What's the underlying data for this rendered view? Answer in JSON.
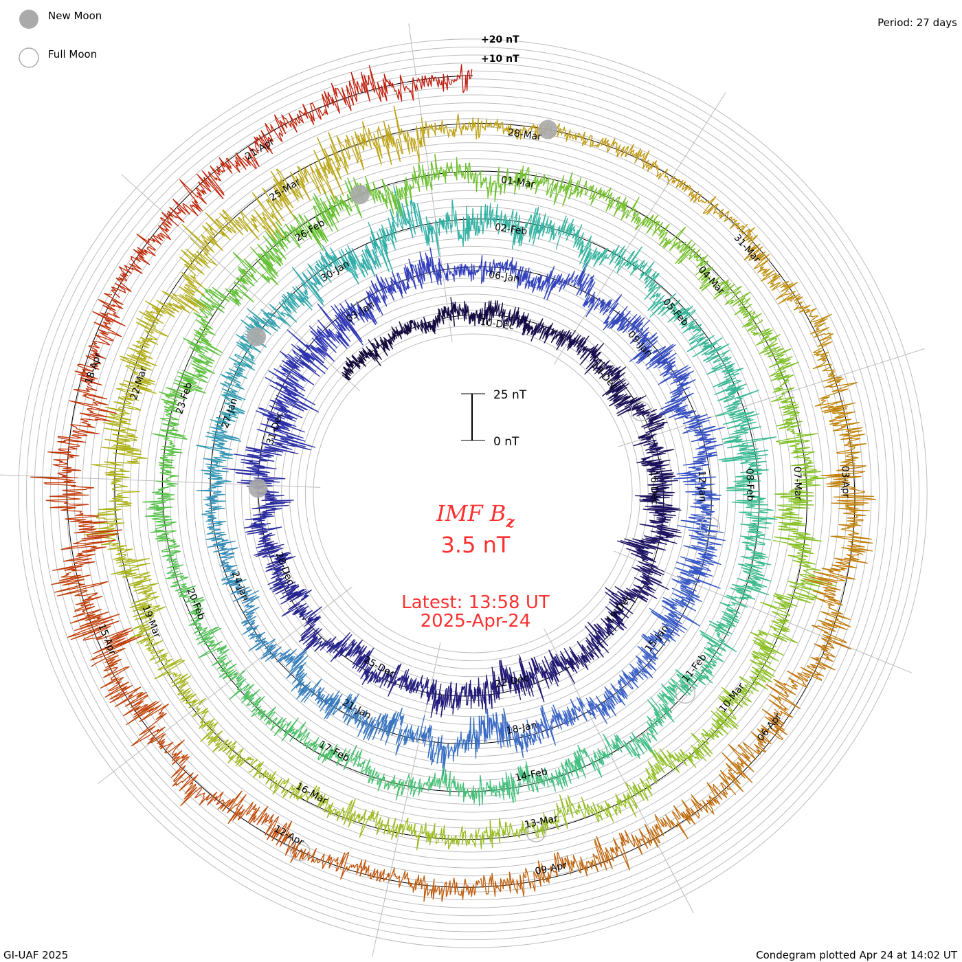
{
  "legend": {
    "new_moon": "New Moon",
    "full_moon": "Full Moon"
  },
  "period": "Period: 27 days",
  "footer_left": "GI-UAF 2025",
  "footer_right": "Condegram plotted Apr 24 at 14:02 UT",
  "ring_labels": [
    "+20 nT",
    "+10 nT"
  ],
  "scale": {
    "top": "25 nT",
    "bottom": "0 nT"
  },
  "center": {
    "title": "IMF B",
    "subscript": "z",
    "value": "3.5 nT",
    "latest": "Latest: 13:58 UT",
    "date": "2025-Apr-24"
  },
  "chart_data": {
    "type": "line",
    "layout": "condegram spiral",
    "title": "IMF Bz",
    "units": "nT",
    "period_days": 27,
    "start": "2024-12-07T00:00:00Z",
    "end": "2025-04-24T13:58:00Z",
    "latest_value_nT": 3.5,
    "positive_direction": "outward",
    "date_labels": [
      "10-Dec",
      "13-Dec",
      "16-Dec",
      "19-Dec",
      "22-Dec",
      "25-Dec",
      "28-Dec",
      "31-Dec",
      "03-Jan",
      "06-Jan",
      "09-Jan",
      "12-Jan",
      "15-Jan",
      "18-Jan",
      "21-Jan",
      "24-Jan",
      "27-Jan",
      "30-Jan",
      "02-Feb",
      "05-Feb",
      "08-Feb",
      "11-Feb",
      "14-Feb",
      "17-Feb",
      "20-Feb",
      "23-Feb",
      "26-Feb",
      "01-Mar",
      "04-Mar",
      "07-Mar",
      "10-Mar",
      "13-Mar",
      "16-Mar",
      "19-Mar",
      "22-Mar",
      "25-Mar",
      "28-Mar",
      "31-Mar",
      "03-Apr",
      "06-Apr",
      "09-Apr",
      "12-Apr",
      "15-Apr",
      "18-Apr",
      "21-Apr"
    ],
    "first_label_date": "2024-12-10T00:00:00Z",
    "label_interval_days": 3,
    "new_moons": [
      "2024-12-30T22:27:00Z",
      "2025-01-29T12:36:00Z",
      "2025-02-28T00:45:00Z",
      "2025-03-29T10:58:00Z"
    ],
    "full_moons": [
      "2024-12-15T09:02:00Z",
      "2025-01-13T22:27:00Z",
      "2025-02-12T13:53:00Z",
      "2025-03-14T06:55:00Z",
      "2025-04-13T00:22:00Z"
    ],
    "daily_variability_nT": [
      3,
      3,
      3,
      4,
      4,
      4,
      4,
      5,
      5,
      5,
      6,
      7,
      6,
      5,
      5,
      6,
      7,
      6,
      5,
      5,
      5,
      5,
      5,
      6,
      9,
      9,
      8,
      7,
      6,
      6,
      4,
      4,
      5,
      5,
      6,
      6,
      6,
      6,
      7,
      6,
      5,
      5,
      6,
      7,
      6,
      6,
      5,
      5,
      4,
      4,
      4,
      5,
      5,
      6,
      7,
      7,
      8,
      6,
      6,
      5,
      5,
      5,
      6,
      7,
      7,
      6,
      6,
      5,
      5,
      5,
      5,
      4,
      4,
      4,
      4,
      4,
      4,
      5,
      5,
      6,
      6,
      7,
      7,
      6,
      5,
      5,
      4,
      4,
      5,
      5,
      6,
      7,
      7,
      6,
      5,
      5,
      5,
      4,
      4,
      4,
      4,
      4,
      5,
      6,
      6,
      7,
      6,
      7,
      8,
      9,
      8,
      3,
      3,
      3,
      3,
      4,
      4,
      6,
      7,
      7,
      6,
      6,
      5,
      5,
      5,
      4,
      4,
      5,
      5,
      7,
      9,
      9,
      7,
      5,
      4,
      5,
      5,
      6,
      4
    ],
    "colormap": [
      [
        0,
        "#120838"
      ],
      [
        0.12,
        "#221a78"
      ],
      [
        0.2,
        "#3038b8"
      ],
      [
        0.3,
        "#3a62c8"
      ],
      [
        0.4,
        "#30b0a8"
      ],
      [
        0.5,
        "#40c080"
      ],
      [
        0.58,
        "#60c030"
      ],
      [
        0.68,
        "#90c020"
      ],
      [
        0.76,
        "#b0b018"
      ],
      [
        0.8,
        "#c0a010"
      ],
      [
        0.86,
        "#c07808"
      ],
      [
        0.92,
        "#c04808"
      ],
      [
        1,
        "#c01008"
      ]
    ],
    "scale_bar_nT": 25,
    "grid": true
  }
}
